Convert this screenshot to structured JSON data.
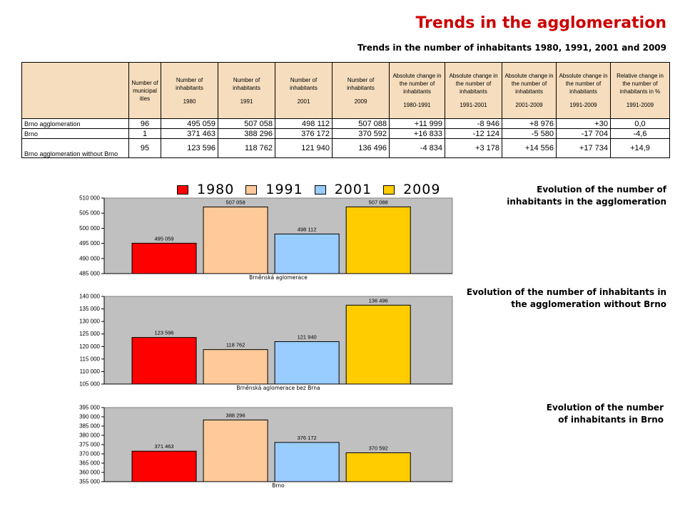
{
  "title": "Trends in the agglomeration",
  "subtitle": "Trends in the number of inhabitants 1980, 1991, 2001 and 2009",
  "colors": {
    "title": "#cc0000",
    "s1980": "#ff0000",
    "s1991": "#ffc999",
    "s2001": "#99ccff",
    "s2009": "#ffcc00",
    "plot_bg": "#c0c0c0",
    "header_bg": "#f5ddbd"
  },
  "table": {
    "headers": [
      {
        "label": "",
        "sub": ""
      },
      {
        "label": "Number of municipal ities",
        "sub": ""
      },
      {
        "label": "Number of inhabitants",
        "sub": "1980"
      },
      {
        "label": "Number of inhabitants",
        "sub": "1991"
      },
      {
        "label": "Number of inhabitants",
        "sub": "2001"
      },
      {
        "label": "Number of inhabitants",
        "sub": "2009"
      },
      {
        "label": "Absolute change in the number of inhabitants",
        "sub": "1980-1991"
      },
      {
        "label": "Absolute change in the number of inhabitants",
        "sub": "1991-2001"
      },
      {
        "label": "Absolute change in the number of inhabitants",
        "sub": "2001-2009"
      },
      {
        "label": "Absolute change in the number of inhabitants",
        "sub": "1991-2009"
      },
      {
        "label": "Relative change in the number of inhabitants in %",
        "sub": "1991-2009"
      }
    ],
    "rows": [
      {
        "name": "Brno agglomeration",
        "municipalities": "96",
        "v1980": "495 059",
        "v1991": "507 058",
        "v2001": "498 112",
        "v2009": "507 088",
        "ch1980_1991": "+11 999",
        "ch1991_2001": "-8 946",
        "ch2001_2009": "+8 976",
        "ch1991_2009": "+30",
        "rel1991_2009": "0,0"
      },
      {
        "name": "Brno",
        "municipalities": "1",
        "v1980": "371 463",
        "v1991": "388 296",
        "v2001": "376 172",
        "v2009": "370 592",
        "ch1980_1991": "+16 833",
        "ch1991_2001": "-12 124",
        "ch2001_2009": "-5 580",
        "ch1991_2009": "-17 704",
        "rel1991_2009": "-4,6"
      },
      {
        "name": "Brno agglomeration without Brno",
        "municipalities": "95",
        "v1980": "123 596",
        "v1991": "118 762",
        "v2001": "121 940",
        "v2009": "136 496",
        "ch1980_1991": "-4 834",
        "ch1991_2001": "+3 178",
        "ch2001_2009": "+14 556",
        "ch1991_2009": "+17 734",
        "rel1991_2009": "+14,9"
      }
    ]
  },
  "legend": [
    {
      "label": "1980",
      "color": "#ff0000"
    },
    {
      "label": "1991",
      "color": "#ffc999"
    },
    {
      "label": "2001",
      "color": "#99ccff"
    },
    {
      "label": "2009",
      "color": "#ffcc00"
    }
  ],
  "chart_data": [
    {
      "type": "bar",
      "caption": "Evolution of the number of inhabitants in the agglomeration",
      "xlabel": "Brněnská aglomerace",
      "categories": [
        "1980",
        "1991",
        "2001",
        "2009"
      ],
      "values": [
        495059,
        507058,
        498112,
        507088
      ],
      "value_labels": [
        "495 059",
        "507 058",
        "498 112",
        "507 088"
      ],
      "ylim": [
        485000,
        510000
      ],
      "yticks": [
        485000,
        490000,
        495000,
        500000,
        505000,
        510000
      ],
      "ytick_labels": [
        "485 000",
        "490 000",
        "495 000",
        "500 000",
        "505 000",
        "510 000"
      ],
      "colors": [
        "#ff0000",
        "#ffc999",
        "#99ccff",
        "#ffcc00"
      ]
    },
    {
      "type": "bar",
      "caption": "Evolution of the number of inhabitants in the agglomeration without Brno",
      "xlabel": "Brněnská aglomerace bez Brna",
      "categories": [
        "1980",
        "1991",
        "2001",
        "2009"
      ],
      "values": [
        123596,
        118762,
        121940,
        136496
      ],
      "value_labels": [
        "123 596",
        "118 762",
        "121 940",
        "136 496"
      ],
      "ylim": [
        105000,
        140000
      ],
      "yticks": [
        105000,
        110000,
        115000,
        120000,
        125000,
        130000,
        135000,
        140000
      ],
      "ytick_labels": [
        "105 000",
        "110 000",
        "115 000",
        "120 000",
        "125 000",
        "130 000",
        "135 000",
        "140 000"
      ],
      "colors": [
        "#ff0000",
        "#ffc999",
        "#99ccff",
        "#ffcc00"
      ]
    },
    {
      "type": "bar",
      "caption": "Evolution of the number of inhabitants in Brno",
      "xlabel": "Brno",
      "categories": [
        "1980",
        "1991",
        "2001",
        "2009"
      ],
      "values": [
        371463,
        388296,
        376172,
        370592
      ],
      "value_labels": [
        "371 463",
        "388 296",
        "376 172",
        "370 592"
      ],
      "ylim": [
        355000,
        395000
      ],
      "yticks": [
        355000,
        360000,
        365000,
        370000,
        375000,
        380000,
        385000,
        390000,
        395000
      ],
      "ytick_labels": [
        "355 000",
        "360 000",
        "365 000",
        "370 000",
        "375 000",
        "380 000",
        "385 000",
        "390 000",
        "395 000"
      ],
      "colors": [
        "#ff0000",
        "#ffc999",
        "#99ccff",
        "#ffcc00"
      ]
    }
  ]
}
